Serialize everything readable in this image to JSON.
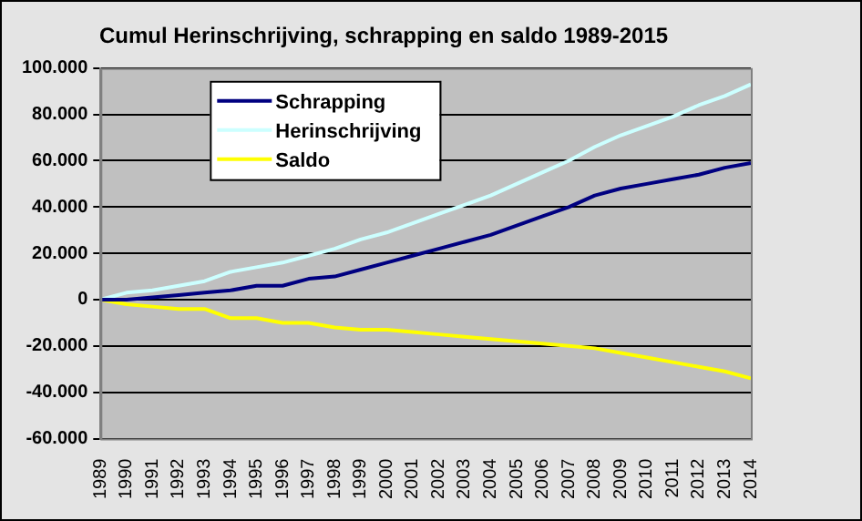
{
  "chart_data": {
    "type": "line",
    "title": "Cumul Herinschrijving, schrapping en saldo 1989-2015",
    "categories": [
      "1989",
      "1990",
      "1991",
      "1992",
      "1993",
      "1994",
      "1995",
      "1996",
      "1997",
      "1998",
      "1999",
      "2000",
      "2001",
      "2002",
      "2003",
      "2004",
      "2005",
      "2006",
      "2007",
      "2008",
      "2009",
      "2010",
      "2011",
      "2012",
      "2013",
      "2014"
    ],
    "series": [
      {
        "name": "Schrapping",
        "color": "#000080",
        "values": [
          0,
          0,
          1000,
          2000,
          3000,
          4000,
          6000,
          6000,
          9000,
          10000,
          13000,
          16000,
          19000,
          22000,
          25000,
          28000,
          32000,
          36000,
          40000,
          45000,
          48000,
          50000,
          52000,
          54000,
          57000,
          59000
        ]
      },
      {
        "name": "Herinschrijving",
        "color": "#ccffff",
        "values": [
          0,
          3000,
          4000,
          6000,
          8000,
          12000,
          14000,
          16000,
          19000,
          22000,
          26000,
          29000,
          33000,
          37000,
          41000,
          45000,
          50000,
          55000,
          60000,
          66000,
          71000,
          75000,
          79000,
          84000,
          88000,
          93000
        ]
      },
      {
        "name": "Saldo",
        "color": "#ffff00",
        "values": [
          0,
          -2000,
          -3000,
          -4000,
          -4000,
          -8000,
          -8000,
          -10000,
          -10000,
          -12000,
          -13000,
          -13000,
          -14000,
          -15000,
          -16000,
          -17000,
          -18000,
          -19000,
          -20000,
          -21000,
          -23000,
          -25000,
          -27000,
          -29000,
          -31000,
          -34000
        ]
      }
    ],
    "ylim": [
      -60000,
      100000
    ],
    "yticks": [
      {
        "value": -60000,
        "label": "-60.000"
      },
      {
        "value": -40000,
        "label": "-40.000"
      },
      {
        "value": -20000,
        "label": "-20.000"
      },
      0,
      {
        "value": 20000,
        "label": "20.000"
      },
      {
        "value": 40000,
        "label": "40.000"
      },
      {
        "value": 60000,
        "label": "60.000"
      },
      {
        "value": 80000,
        "label": "80.000"
      },
      {
        "value": 100000,
        "label": "100.000"
      }
    ],
    "grid": "y",
    "legend": "top left",
    "marker": "none",
    "line_style": "solid"
  }
}
